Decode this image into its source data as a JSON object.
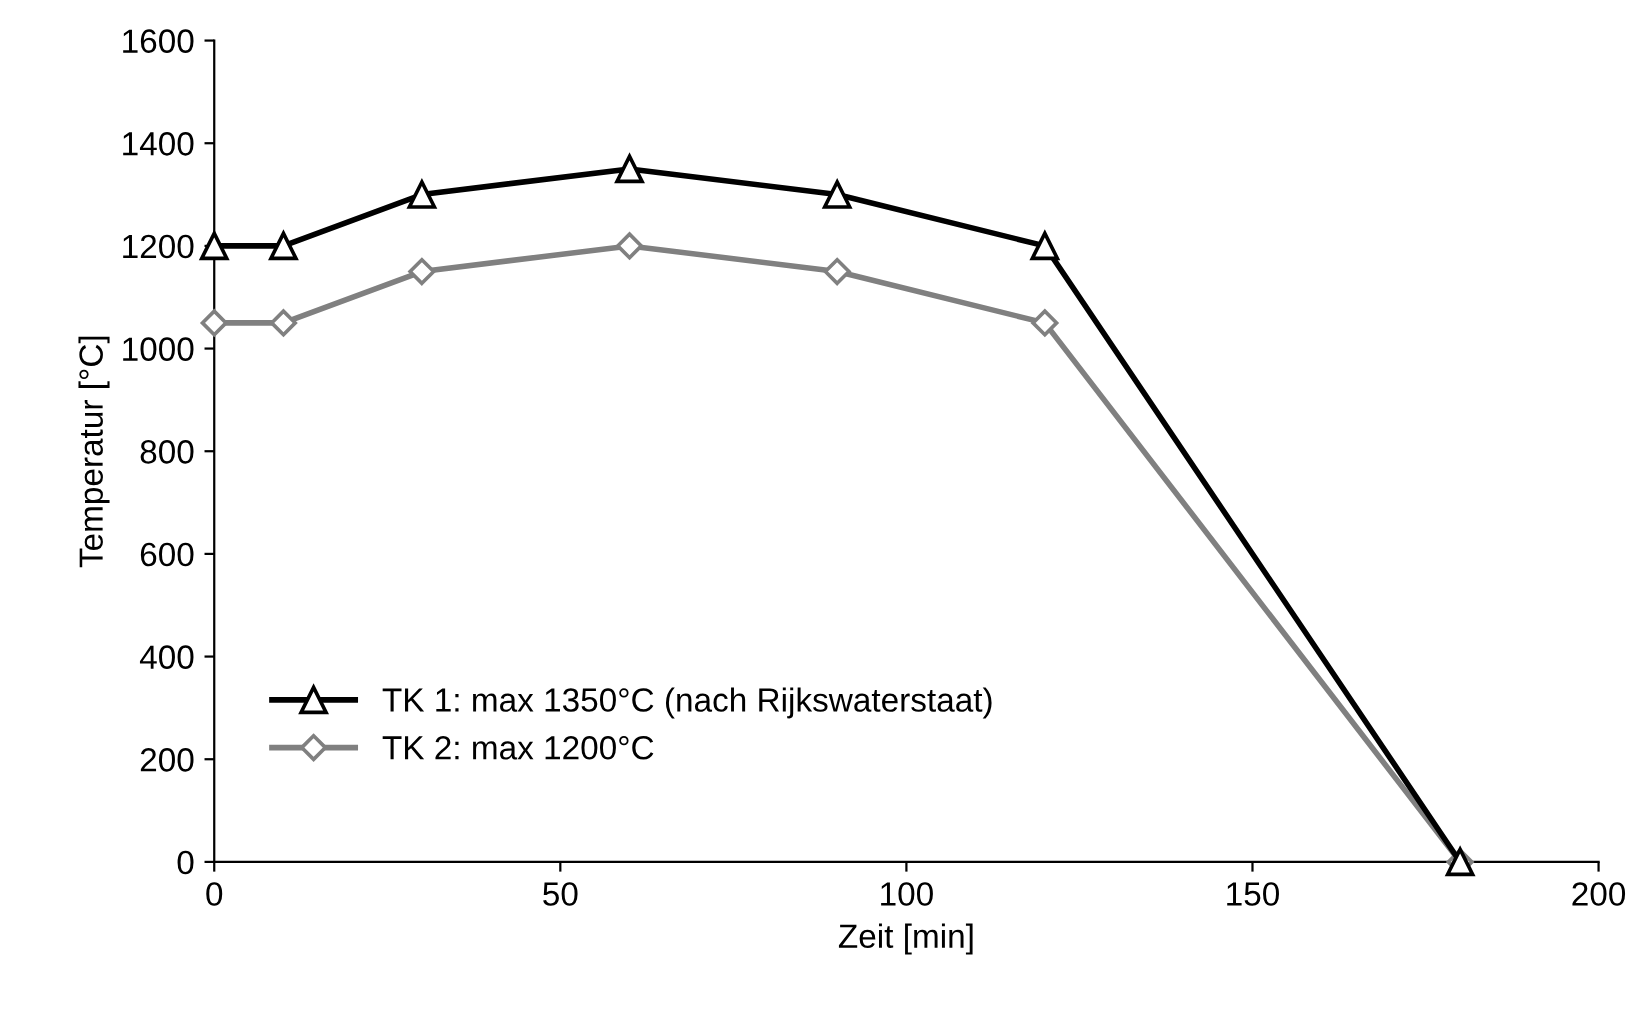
{
  "chart_data": {
    "type": "line",
    "xlabel": "Zeit [min]",
    "ylabel": "Temperatur [°C]",
    "x": [
      0,
      10,
      30,
      60,
      90,
      120,
      180
    ],
    "series": [
      {
        "name": "TK 1: max 1350°C (nach Rijkswaterstaat)",
        "color": "#000000",
        "marker": "triangle",
        "values": [
          1200,
          1200,
          1300,
          1350,
          1300,
          1200,
          0
        ]
      },
      {
        "name": "TK 2: max 1200°C",
        "color": "#808080",
        "marker": "diamond",
        "values": [
          1050,
          1050,
          1150,
          1200,
          1150,
          1050,
          0
        ]
      }
    ],
    "xlim": [
      0,
      200
    ],
    "xticks": [
      0,
      50,
      100,
      150,
      200
    ],
    "ylim": [
      0,
      1600
    ],
    "yticks": [
      0,
      200,
      400,
      600,
      800,
      1000,
      1200,
      1400,
      1600
    ],
    "grid": false,
    "legend": "bottom left",
    "line_style": "solid"
  }
}
